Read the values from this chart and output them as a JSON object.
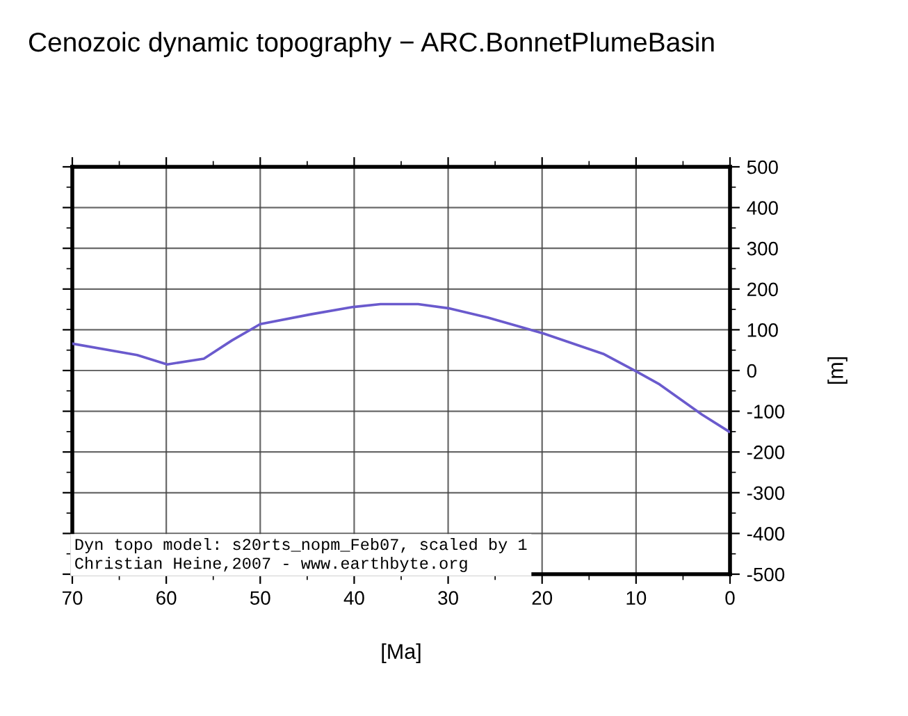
{
  "chart_data": {
    "type": "line",
    "title": "Cenozoic dynamic topography − ARC.BonnetPlumeBasin",
    "xlabel": "[Ma]",
    "ylabel": "[m]",
    "x": [
      70,
      63.1,
      59.9,
      56,
      53,
      50,
      44.6,
      40.1,
      37.2,
      33.2,
      30,
      25.8,
      19.85,
      13.4,
      10,
      7.5,
      3,
      0.1
    ],
    "series": [
      {
        "color": "#6a5acd",
        "values": [
          66,
          38,
          15,
          29,
          74,
          114,
          138,
          156,
          163,
          163,
          153,
          130,
          91,
          40,
          -2,
          -34,
          -108,
          -150
        ]
      }
    ],
    "xlim": [
      70,
      0
    ],
    "ylim": [
      -500,
      500
    ],
    "xticks": [
      70,
      {
        "value": 65,
        "label": null
      },
      60,
      {
        "value": 55,
        "label": null
      },
      50,
      {
        "value": 45,
        "label": null
      },
      40,
      {
        "value": 35,
        "label": null
      },
      30,
      {
        "value": 25,
        "label": null
      },
      20,
      {
        "value": 15,
        "label": null
      },
      10,
      {
        "value": 5,
        "label": null
      },
      0
    ],
    "yticks": [
      -500,
      {
        "value": -450,
        "label": null
      },
      -400,
      {
        "value": -350,
        "label": null
      },
      -300,
      {
        "value": -250,
        "label": null
      },
      -200,
      {
        "value": -150,
        "label": null
      },
      -100,
      {
        "value": -50,
        "label": null
      },
      0,
      {
        "value": 50,
        "label": null
      },
      100,
      {
        "value": 150,
        "label": null
      },
      200,
      {
        "value": 250,
        "label": null
      },
      300,
      {
        "value": 350,
        "label": null
      },
      400,
      {
        "value": 450,
        "label": null
      },
      500
    ],
    "grid": true,
    "line_style": "solid",
    "marker": "none",
    "annotations": [
      "Dyn topo model: s20rts_nopm_Feb07, scaled by 1\nChristian Heine,2007 - www.earthbyte.org"
    ]
  }
}
